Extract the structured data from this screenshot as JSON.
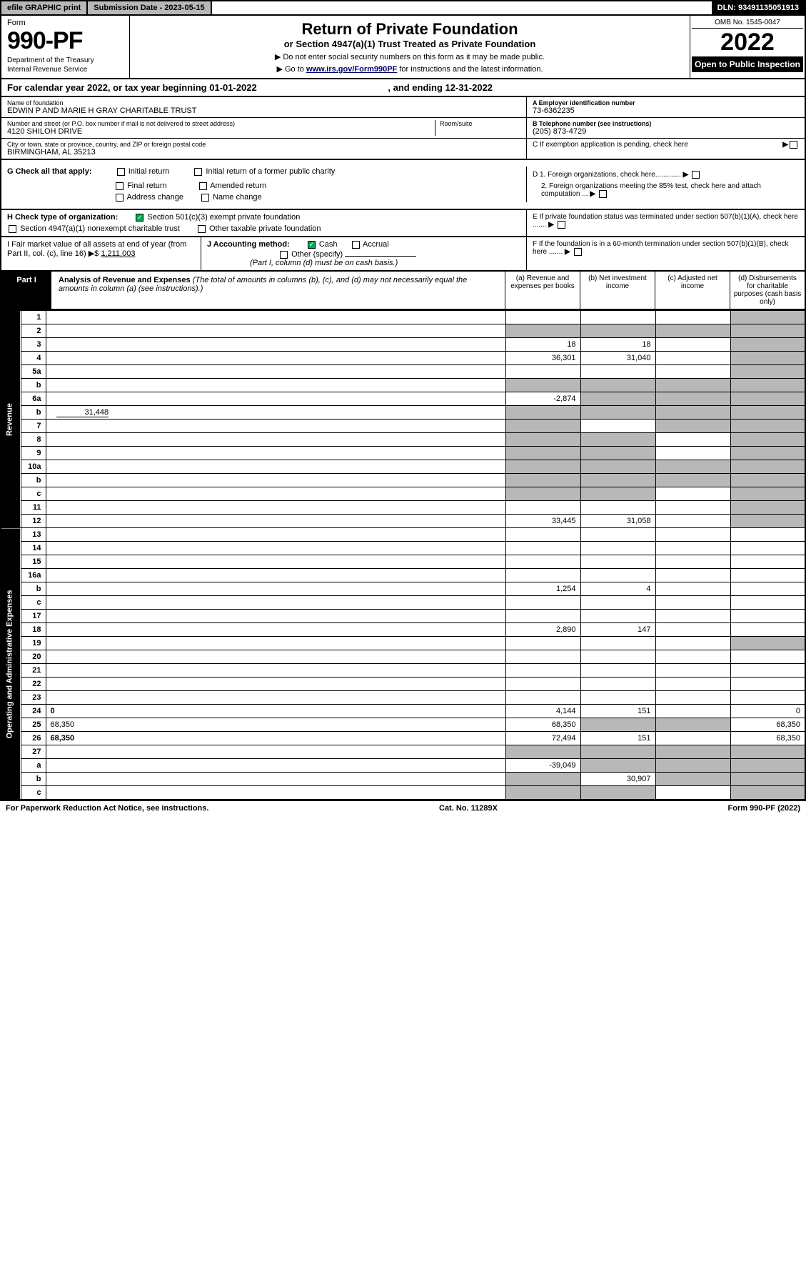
{
  "top": {
    "efile": "efile GRAPHIC print",
    "submission_label": "Submission Date - 2023-05-15",
    "dln": "DLN: 93491135051913"
  },
  "header": {
    "form_word": "Form",
    "form_number": "990-PF",
    "dept": "Department of the Treasury",
    "irs": "Internal Revenue Service",
    "title": "Return of Private Foundation",
    "subtitle": "or Section 4947(a)(1) Trust Treated as Private Foundation",
    "note1": "▶ Do not enter social security numbers on this form as it may be made public.",
    "note2_pre": "▶ Go to ",
    "note2_link": "www.irs.gov/Form990PF",
    "note2_post": " for instructions and the latest information.",
    "omb": "OMB No. 1545-0047",
    "year": "2022",
    "open": "Open to Public Inspection"
  },
  "calyear": {
    "text_pre": "For calendar year 2022, or tax year beginning ",
    "begin": "01-01-2022",
    "mid": " , and ending ",
    "end": "12-31-2022"
  },
  "info": {
    "name_label": "Name of foundation",
    "name": "EDWIN P AND MARIE H GRAY CHARITABLE TRUST",
    "addr_label": "Number and street (or P.O. box number if mail is not delivered to street address)",
    "addr": "4120 SHILOH DRIVE",
    "room_label": "Room/suite",
    "city_label": "City or town, state or province, country, and ZIP or foreign postal code",
    "city": "BIRMINGHAM, AL  35213",
    "ein_label": "A Employer identification number",
    "ein": "73-6362235",
    "phone_label": "B Telephone number (see instructions)",
    "phone": "(205) 873-4729",
    "c_label": "C If exemption application is pending, check here",
    "d1": "D 1. Foreign organizations, check here.............",
    "d2": "2. Foreign organizations meeting the 85% test, check here and attach computation ...",
    "e_label": "E  If private foundation status was terminated under section 507(b)(1)(A), check here .......",
    "f_label": "F  If the foundation is in a 60-month termination under section 507(b)(1)(B), check here .......",
    "g_label": "G Check all that apply:",
    "g_opts": [
      "Initial return",
      "Initial return of a former public charity",
      "Final return",
      "Amended return",
      "Address change",
      "Name change"
    ],
    "h_label": "H Check type of organization:",
    "h_opt1": "Section 501(c)(3) exempt private foundation",
    "h_opt2": "Section 4947(a)(1) nonexempt charitable trust",
    "h_opt3": "Other taxable private foundation",
    "i_label": "I Fair market value of all assets at end of year (from Part II, col. (c), line 16) ▶$ ",
    "i_val": "1,211,003",
    "j_label": "J Accounting method:",
    "j_cash": "Cash",
    "j_accrual": "Accrual",
    "j_other": "Other (specify)",
    "j_note": "(Part I, column (d) must be on cash basis.)"
  },
  "part1": {
    "label": "Part I",
    "title": "Analysis of Revenue and Expenses",
    "desc": " (The total of amounts in columns (b), (c), and (d) may not necessarily equal the amounts in column (a) (see instructions).)",
    "col_a": "(a)   Revenue and expenses per books",
    "col_b": "(b)  Net investment income",
    "col_c": "(c)  Adjusted net income",
    "col_d": "(d)  Disbursements for charitable purposes (cash basis only)"
  },
  "sections": {
    "revenue": "Revenue",
    "expenses": "Operating and Administrative Expenses"
  },
  "rows": [
    {
      "n": "1",
      "d": "",
      "a": "",
      "b": "",
      "c": "",
      "greyD": true
    },
    {
      "n": "2",
      "d": "",
      "a": "",
      "b": "",
      "c": "",
      "greyAll": true,
      "bold_not": true
    },
    {
      "n": "3",
      "d": "",
      "a": "18",
      "b": "18",
      "c": "",
      "greyD": true
    },
    {
      "n": "4",
      "d": "",
      "a": "36,301",
      "b": "31,040",
      "c": "",
      "greyD": true
    },
    {
      "n": "5a",
      "d": "",
      "a": "",
      "b": "",
      "c": "",
      "greyD": true
    },
    {
      "n": "b",
      "d": "",
      "a": "",
      "b": "",
      "c": "",
      "greyAll": true,
      "inline": true
    },
    {
      "n": "6a",
      "d": "",
      "a": "-2,874",
      "b": "",
      "c": "",
      "greyBCD": true
    },
    {
      "n": "b",
      "d": "",
      "a": "",
      "b": "",
      "c": "",
      "greyAll": true,
      "inline_val": "31,448"
    },
    {
      "n": "7",
      "d": "",
      "a": "",
      "b": "",
      "c": "",
      "greyA": true,
      "greyCD": true
    },
    {
      "n": "8",
      "d": "",
      "a": "",
      "b": "",
      "c": "",
      "greyAB": true,
      "greyD": true
    },
    {
      "n": "9",
      "d": "",
      "a": "",
      "b": "",
      "c": "",
      "greyAB": true,
      "greyD": true
    },
    {
      "n": "10a",
      "d": "",
      "a": "",
      "b": "",
      "c": "",
      "greyAll": true,
      "inline": true
    },
    {
      "n": "b",
      "d": "",
      "a": "",
      "b": "",
      "c": "",
      "greyAll": true,
      "inline": true
    },
    {
      "n": "c",
      "d": "",
      "a": "",
      "b": "",
      "c": "",
      "greyAB": true,
      "greyD": true
    },
    {
      "n": "11",
      "d": "",
      "a": "",
      "b": "",
      "c": "",
      "greyD": true
    },
    {
      "n": "12",
      "d": "",
      "a": "33,445",
      "b": "31,058",
      "c": "",
      "greyD": true,
      "bold": true
    }
  ],
  "exp_rows": [
    {
      "n": "13",
      "d": "",
      "a": "",
      "b": "",
      "c": ""
    },
    {
      "n": "14",
      "d": "",
      "a": "",
      "b": "",
      "c": ""
    },
    {
      "n": "15",
      "d": "",
      "a": "",
      "b": "",
      "c": ""
    },
    {
      "n": "16a",
      "d": "",
      "a": "",
      "b": "",
      "c": ""
    },
    {
      "n": "b",
      "d": "",
      "a": "1,254",
      "b": "4",
      "c": ""
    },
    {
      "n": "c",
      "d": "",
      "a": "",
      "b": "",
      "c": ""
    },
    {
      "n": "17",
      "d": "",
      "a": "",
      "b": "",
      "c": ""
    },
    {
      "n": "18",
      "d": "",
      "a": "2,890",
      "b": "147",
      "c": ""
    },
    {
      "n": "19",
      "d": "",
      "a": "",
      "b": "",
      "c": "",
      "greyD": true
    },
    {
      "n": "20",
      "d": "",
      "a": "",
      "b": "",
      "c": ""
    },
    {
      "n": "21",
      "d": "",
      "a": "",
      "b": "",
      "c": ""
    },
    {
      "n": "22",
      "d": "",
      "a": "",
      "b": "",
      "c": ""
    },
    {
      "n": "23",
      "d": "",
      "a": "",
      "b": "",
      "c": ""
    },
    {
      "n": "24",
      "d": "0",
      "a": "4,144",
      "b": "151",
      "c": "",
      "bold": true
    },
    {
      "n": "25",
      "d": "68,350",
      "a": "68,350",
      "b": "",
      "c": "",
      "greyBC": true
    },
    {
      "n": "26",
      "d": "68,350",
      "a": "72,494",
      "b": "151",
      "c": "",
      "bold": true
    },
    {
      "n": "27",
      "d": "",
      "a": "",
      "b": "",
      "c": "",
      "greyAll": true
    },
    {
      "n": "a",
      "d": "",
      "a": "-39,049",
      "b": "",
      "c": "",
      "greyBCD": true,
      "bold": true
    },
    {
      "n": "b",
      "d": "",
      "a": "",
      "b": "30,907",
      "c": "",
      "greyA": true,
      "greyCD": true,
      "bold": true
    },
    {
      "n": "c",
      "d": "",
      "a": "",
      "b": "",
      "c": "",
      "greyAB": true,
      "greyD": true,
      "bold": true
    }
  ],
  "footer": {
    "left": "For Paperwork Reduction Act Notice, see instructions.",
    "mid": "Cat. No. 11289X",
    "right": "Form 990-PF (2022)"
  }
}
